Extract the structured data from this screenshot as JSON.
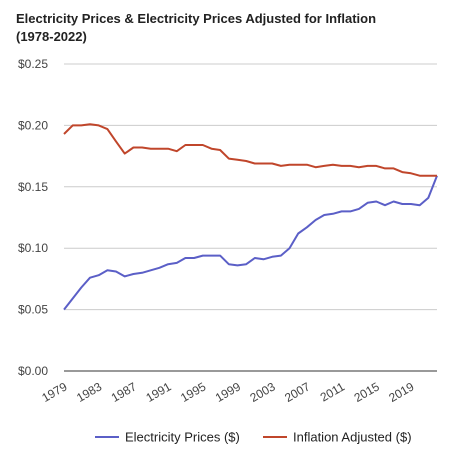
{
  "chart_data": {
    "type": "line",
    "title_lines": [
      "Electricity Prices & Electricity Prices Adjusted for Inflation",
      "(1978-2022)"
    ],
    "xlabel": "",
    "ylabel": "",
    "ylim": [
      0,
      0.25
    ],
    "y_ticks": [
      0,
      0.05,
      0.1,
      0.15,
      0.2,
      0.25
    ],
    "y_tick_labels": [
      "$0.00",
      "$0.05",
      "$0.10",
      "$0.15",
      "$0.20",
      "$0.25"
    ],
    "xlim": [
      1979,
      2022
    ],
    "x_ticks": [
      1979,
      1983,
      1987,
      1991,
      1995,
      1999,
      2003,
      2007,
      2011,
      2015,
      2019
    ],
    "x_tick_labels": [
      "1979",
      "1983",
      "1987",
      "1991",
      "1995",
      "1999",
      "2003",
      "2007",
      "2011",
      "2015",
      "2019"
    ],
    "grid": true,
    "legend": "bottom",
    "x": [
      1979,
      1980,
      1981,
      1982,
      1983,
      1984,
      1985,
      1986,
      1987,
      1988,
      1989,
      1990,
      1991,
      1992,
      1993,
      1994,
      1995,
      1996,
      1997,
      1998,
      1999,
      2000,
      2001,
      2002,
      2003,
      2004,
      2005,
      2006,
      2007,
      2008,
      2009,
      2010,
      2011,
      2012,
      2013,
      2014,
      2015,
      2016,
      2017,
      2018,
      2019,
      2020,
      2021,
      2022
    ],
    "series": [
      {
        "name": "Electricity Prices ($)",
        "color": "#5b5fc7",
        "values": [
          0.05,
          0.059,
          0.068,
          0.076,
          0.078,
          0.082,
          0.081,
          0.077,
          0.079,
          0.08,
          0.082,
          0.084,
          0.087,
          0.088,
          0.092,
          0.092,
          0.094,
          0.094,
          0.094,
          0.087,
          0.086,
          0.087,
          0.092,
          0.091,
          0.093,
          0.094,
          0.1,
          0.112,
          0.117,
          0.123,
          0.127,
          0.128,
          0.13,
          0.13,
          0.132,
          0.137,
          0.138,
          0.135,
          0.138,
          0.136,
          0.136,
          0.135,
          0.141,
          0.159
        ]
      },
      {
        "name": "Inflation Adjusted ($)",
        "color": "#c0462b",
        "values": [
          0.193,
          0.2,
          0.2,
          0.201,
          0.2,
          0.197,
          0.187,
          0.177,
          0.182,
          0.182,
          0.181,
          0.181,
          0.181,
          0.179,
          0.184,
          0.184,
          0.184,
          0.181,
          0.18,
          0.173,
          0.172,
          0.171,
          0.169,
          0.169,
          0.169,
          0.167,
          0.168,
          0.168,
          0.168,
          0.166,
          0.167,
          0.168,
          0.167,
          0.167,
          0.166,
          0.167,
          0.167,
          0.165,
          0.165,
          0.162,
          0.161,
          0.159,
          0.159,
          0.159
        ]
      }
    ]
  }
}
